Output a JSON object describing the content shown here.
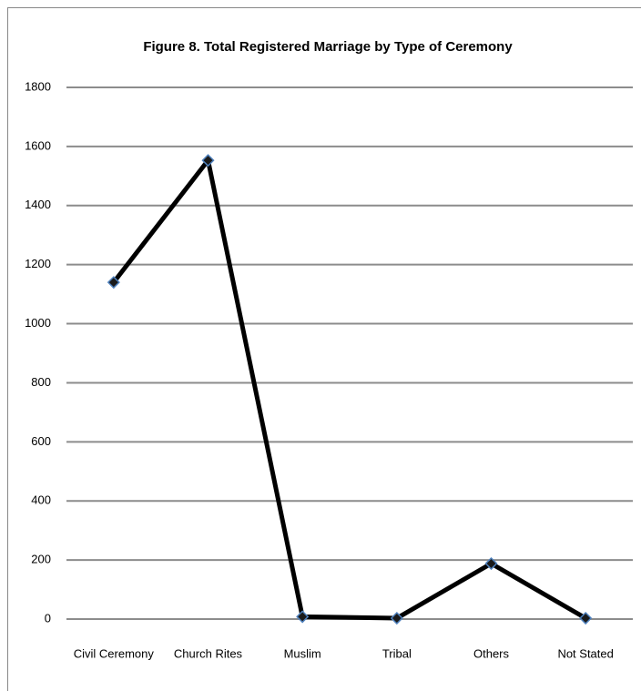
{
  "chart_data": {
    "type": "line",
    "title": "Figure 8. Total Registered  Marriage  by Type  of Ceremony",
    "categories": [
      "Civil Ceremony",
      "Church Rites",
      "Muslim",
      "Tribal",
      "Others",
      "Not Stated"
    ],
    "values": [
      1140,
      1553,
      8,
      3,
      188,
      3
    ],
    "color": "#000000",
    "marker_color": "#4f81bd",
    "ylim": [
      0,
      1800
    ],
    "yticks": [
      0,
      200,
      400,
      600,
      800,
      1000,
      1200,
      1400,
      1600,
      1800
    ],
    "grid": true
  }
}
